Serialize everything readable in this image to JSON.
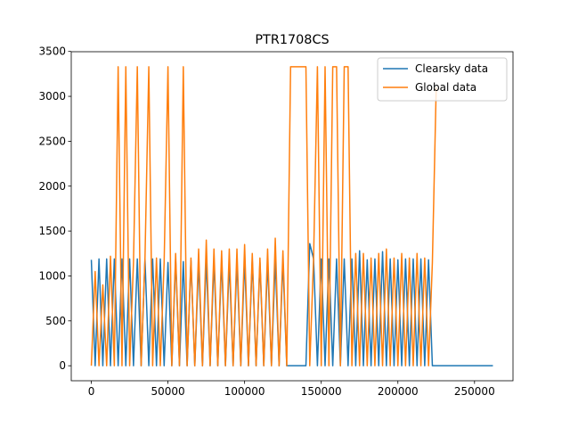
{
  "chart_data": {
    "type": "line",
    "title": "PTR1708CS",
    "xlim": [
      -13100,
      275100
    ],
    "ylim": [
      -167,
      3497
    ],
    "xticks": [
      0,
      50000,
      100000,
      150000,
      200000,
      250000
    ],
    "yticks": [
      0,
      500,
      1000,
      1500,
      2000,
      2500,
      3000,
      3500
    ],
    "legend": "upper right",
    "series": [
      {
        "name": "Clearsky data",
        "color": "#1f77b4",
        "x": [
          0,
          2500,
          5000,
          7500,
          10000,
          12500,
          15000,
          17500,
          20000,
          22500,
          25000,
          27500,
          30000,
          32500,
          35000,
          37500,
          40000,
          42500,
          45000,
          47500,
          50000,
          52500,
          55000,
          57500,
          60000,
          62500,
          65000,
          67500,
          70000,
          72500,
          75000,
          77500,
          80000,
          82500,
          85000,
          87500,
          90000,
          92500,
          95000,
          97500,
          100000,
          102500,
          105000,
          107500,
          110000,
          112500,
          115000,
          117500,
          120000,
          122500,
          125000,
          127500,
          130000,
          132500,
          135000,
          137500,
          140000,
          142500,
          145000,
          147500,
          150000,
          152500,
          155000,
          157500,
          160000,
          162500,
          165000,
          167500,
          170000,
          172500,
          175000,
          177500,
          180000,
          182500,
          185000,
          187500,
          190000,
          192500,
          195000,
          197500,
          200000,
          202500,
          205000,
          207500,
          210000,
          212500,
          215000,
          217500,
          220000,
          222500,
          225000,
          262000
        ],
        "values": [
          1180,
          0,
          1190,
          0,
          1190,
          0,
          1190,
          0,
          1190,
          0,
          1190,
          0,
          1190,
          0,
          1190,
          0,
          1190,
          0,
          1190,
          0,
          1150,
          0,
          1180,
          0,
          1160,
          0,
          1170,
          0,
          1150,
          0,
          1180,
          0,
          1160,
          0,
          1170,
          0,
          1150,
          0,
          1160,
          0,
          1180,
          0,
          1170,
          0,
          1150,
          0,
          1160,
          0,
          1180,
          0,
          1170,
          0,
          0,
          0,
          0,
          0,
          0,
          1360,
          1190,
          0,
          1190,
          0,
          1190,
          0,
          1190,
          0,
          1190,
          0,
          1190,
          0,
          1280,
          0,
          1180,
          0,
          1190,
          0,
          1270,
          0,
          1190,
          0,
          1180,
          0,
          1190,
          0,
          1190,
          0,
          1190,
          0,
          1180,
          0,
          0,
          0
        ]
      },
      {
        "name": "Global data",
        "color": "#ff7f0e",
        "x": [
          0,
          2500,
          5000,
          7500,
          10000,
          12500,
          15000,
          17500,
          20000,
          22500,
          25000,
          27500,
          30000,
          32500,
          35000,
          37500,
          40000,
          42500,
          45000,
          47500,
          50000,
          52500,
          55000,
          57500,
          60000,
          62500,
          65000,
          67500,
          70000,
          72500,
          75000,
          77500,
          80000,
          82500,
          85000,
          87500,
          90000,
          92500,
          95000,
          97500,
          100000,
          102500,
          105000,
          107500,
          110000,
          112500,
          115000,
          117500,
          120000,
          122500,
          125000,
          127500,
          130000,
          132500,
          135000,
          137500,
          140000,
          142500,
          145000,
          147500,
          150000,
          152500,
          155000,
          157500,
          160000,
          162500,
          165000,
          167500,
          170000,
          172500,
          175000,
          177500,
          180000,
          182500,
          185000,
          187500,
          190000,
          192500,
          195000,
          197500,
          200000,
          202500,
          205000,
          207500,
          210000,
          212500,
          215000,
          217500,
          220000,
          222500,
          225000
        ],
        "values": [
          0,
          1050,
          0,
          900,
          0,
          1220,
          0,
          3330,
          0,
          3330,
          0,
          1150,
          3330,
          0,
          1190,
          3330,
          0,
          1200,
          0,
          1150,
          3330,
          0,
          1250,
          0,
          3330,
          0,
          1200,
          0,
          1300,
          0,
          1400,
          0,
          1300,
          0,
          1280,
          0,
          1300,
          0,
          1300,
          0,
          1350,
          0,
          1250,
          0,
          1200,
          0,
          1300,
          0,
          1420,
          0,
          1280,
          0,
          3330,
          3330,
          3330,
          3330,
          3330,
          0,
          1190,
          3330,
          0,
          3330,
          0,
          3330,
          3330,
          0,
          3330,
          3330,
          0,
          1250,
          0,
          1250,
          0,
          1200,
          0,
          1250,
          0,
          1300,
          0,
          1200,
          0,
          1250,
          0,
          1200,
          0,
          1250,
          0,
          1200,
          0,
          1150,
          3100
        ]
      }
    ]
  }
}
